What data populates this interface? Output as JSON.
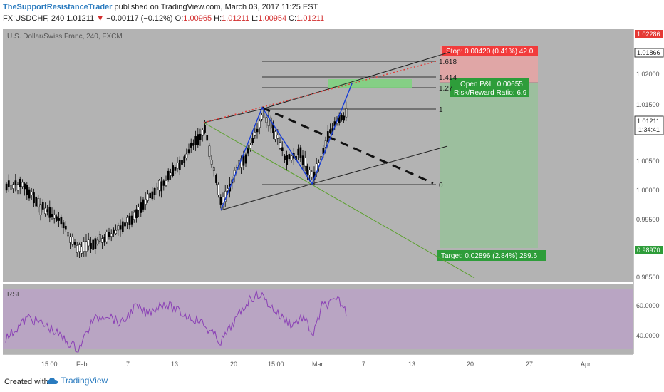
{
  "header": {
    "author": "TheSupportResistanceTrader",
    "published_text": "published on TradingView.com, March 03, 2017 11:25 EST",
    "symbol": "FX:USDCHF, 240",
    "last": "1.01211",
    "change": "−0.00117 (−0.12%)",
    "o_label": "O:",
    "o_value": "1.00965",
    "h_label": "H:",
    "h_value": "1.01211",
    "l_label": "L:",
    "l_value": "1.00954",
    "c_label": "C:",
    "c_value": "1.01211"
  },
  "chart": {
    "instrument_label": "U.S. Dollar/Swiss Franc, 240, FXCM",
    "price_ticks": [
      "1.02000",
      "1.01500",
      "1.01000",
      "1.00500",
      "1.00000",
      "0.99500",
      "0.99000",
      "0.98500"
    ],
    "stop_price": "1.02286",
    "current_price": "1.01866",
    "last_price": "1.01211",
    "countdown": "1:34:41",
    "target_price": "0.98970",
    "fib_labels": [
      "1.618",
      "1.414",
      "1.27",
      "1",
      "0"
    ],
    "stop_label": "Stop: 0.00420 (0.41%) 42.0",
    "pnl_line1": "Open P&L: 0.00655",
    "pnl_line2": "Risk/Reward Ratio: 6.9",
    "target_label": "Target: 0.02896 (2.84%) 289.6",
    "colors": {
      "pane_bg": "#b3b3b3",
      "stop_zone": "#e8a3a3",
      "target_zone": "#98c19a",
      "stop_badge": "#f23b3b",
      "target_badge": "#2e9d3a",
      "rsi_band": "#b9a3c4",
      "rsi_line": "#8a3fb5",
      "highlight_zone": "#7fd17f"
    }
  },
  "rsi": {
    "label": "RSI",
    "ticks": [
      "60.0000",
      "40.0000"
    ]
  },
  "time_axis": [
    "15:00",
    "Feb",
    "7",
    "13",
    "20",
    "15:00",
    "Mar",
    "7",
    "13",
    "20",
    "27",
    "Apr"
  ],
  "footer": {
    "created_with": "Created with",
    "brand": "TradingView"
  }
}
